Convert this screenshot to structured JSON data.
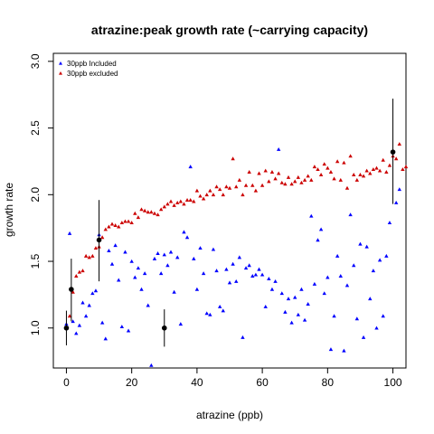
{
  "chart_data": {
    "type": "scatter",
    "title": "atrazine:peak growth rate (~carrying capacity)",
    "xlabel": "atrazine (ppb)",
    "ylabel": "growth rate",
    "xlim": [
      -4,
      104
    ],
    "ylim": [
      0.7,
      3.06
    ],
    "xticks": [
      0,
      20,
      40,
      60,
      80,
      100
    ],
    "yticks": [
      1.0,
      1.5,
      2.0,
      2.5,
      3.0
    ],
    "x_tick_labels": [
      "0",
      "20",
      "40",
      "60",
      "80",
      "100"
    ],
    "y_tick_labels": [
      "1.0",
      "1.5",
      "2.0",
      "2.5",
      "3.0"
    ],
    "grid": false,
    "legend_position": "top-left",
    "series": [
      {
        "name": "30ppb Included",
        "color": "#0000ff",
        "marker": "triangle",
        "points": [
          [
            0,
            1.03
          ],
          [
            1,
            1.71
          ],
          [
            2,
            1.05
          ],
          [
            3,
            0.96
          ],
          [
            4,
            1.02
          ],
          [
            5,
            1.19
          ],
          [
            6,
            1.09
          ],
          [
            7,
            1.17
          ],
          [
            8,
            1.26
          ],
          [
            9,
            1.28
          ],
          [
            10,
            1.7
          ],
          [
            11,
            1.04
          ],
          [
            12,
            0.92
          ],
          [
            13,
            1.58
          ],
          [
            14,
            1.48
          ],
          [
            15,
            1.62
          ],
          [
            16,
            1.36
          ],
          [
            17,
            1.01
          ],
          [
            18,
            1.57
          ],
          [
            19,
            0.98
          ],
          [
            20,
            1.5
          ],
          [
            21,
            1.38
          ],
          [
            22,
            1.45
          ],
          [
            23,
            1.29
          ],
          [
            24,
            1.41
          ],
          [
            25,
            1.17
          ],
          [
            26,
            0.72
          ],
          [
            27,
            1.52
          ],
          [
            28,
            1.56
          ],
          [
            29,
            1.41
          ],
          [
            30,
            1.55
          ],
          [
            31,
            1.47
          ],
          [
            32,
            1.57
          ],
          [
            33,
            1.27
          ],
          [
            34,
            1.53
          ],
          [
            35,
            1.03
          ],
          [
            36,
            1.72
          ],
          [
            37,
            1.68
          ],
          [
            38,
            2.21
          ],
          [
            39,
            1.52
          ],
          [
            40,
            1.29
          ],
          [
            41,
            1.6
          ],
          [
            42,
            1.41
          ],
          [
            43,
            1.11
          ],
          [
            44,
            1.1
          ],
          [
            45,
            1.59
          ],
          [
            46,
            1.43
          ],
          [
            47,
            1.16
          ],
          [
            48,
            1.13
          ],
          [
            49,
            1.44
          ],
          [
            50,
            1.34
          ],
          [
            51,
            1.48
          ],
          [
            52,
            1.35
          ],
          [
            53,
            1.53
          ],
          [
            54,
            0.93
          ],
          [
            55,
            1.45
          ],
          [
            56,
            1.47
          ],
          [
            57,
            1.39
          ],
          [
            58,
            1.4
          ],
          [
            59,
            1.44
          ],
          [
            60,
            1.4
          ],
          [
            61,
            1.16
          ],
          [
            62,
            1.37
          ],
          [
            63,
            1.29
          ],
          [
            64,
            1.35
          ],
          [
            65,
            2.34
          ],
          [
            66,
            1.26
          ],
          [
            67,
            1.12
          ],
          [
            68,
            1.22
          ],
          [
            69,
            1.04
          ],
          [
            70,
            1.23
          ],
          [
            71,
            1.1
          ],
          [
            72,
            1.29
          ],
          [
            73,
            1.06
          ],
          [
            74,
            1.18
          ],
          [
            75,
            1.84
          ],
          [
            76,
            1.33
          ],
          [
            77,
            1.66
          ],
          [
            78,
            1.74
          ],
          [
            79,
            1.26
          ],
          [
            80,
            1.38
          ],
          [
            81,
            0.84
          ],
          [
            82,
            1.09
          ],
          [
            83,
            1.54
          ],
          [
            84,
            1.39
          ],
          [
            85,
            0.83
          ],
          [
            86,
            1.32
          ],
          [
            87,
            1.85
          ],
          [
            88,
            1.47
          ],
          [
            89,
            1.07
          ],
          [
            90,
            1.63
          ],
          [
            91,
            0.93
          ],
          [
            92,
            1.61
          ],
          [
            93,
            1.22
          ],
          [
            94,
            1.43
          ],
          [
            95,
            1.0
          ],
          [
            96,
            1.51
          ],
          [
            97,
            1.09
          ],
          [
            98,
            1.54
          ],
          [
            99,
            1.79
          ],
          [
            100,
            2.32
          ],
          [
            101,
            1.94
          ],
          [
            102,
            2.04
          ]
        ]
      },
      {
        "name": "30ppb excluded",
        "color": "#cc0000",
        "marker": "triangle",
        "points": [
          [
            0,
            1.0
          ],
          [
            1,
            1.09
          ],
          [
            2,
            1.27
          ],
          [
            3,
            1.39
          ],
          [
            4,
            1.42
          ],
          [
            5,
            1.43
          ],
          [
            6,
            1.54
          ],
          [
            7,
            1.53
          ],
          [
            8,
            1.54
          ],
          [
            9,
            1.6
          ],
          [
            10,
            1.61
          ],
          [
            11,
            1.68
          ],
          [
            12,
            1.74
          ],
          [
            13,
            1.76
          ],
          [
            14,
            1.78
          ],
          [
            15,
            1.77
          ],
          [
            16,
            1.76
          ],
          [
            17,
            1.79
          ],
          [
            18,
            1.8
          ],
          [
            19,
            1.8
          ],
          [
            20,
            1.79
          ],
          [
            21,
            1.86
          ],
          [
            22,
            1.83
          ],
          [
            23,
            1.89
          ],
          [
            24,
            1.88
          ],
          [
            25,
            1.87
          ],
          [
            26,
            1.87
          ],
          [
            27,
            1.86
          ],
          [
            28,
            1.85
          ],
          [
            29,
            1.89
          ],
          [
            30,
            1.91
          ],
          [
            31,
            1.93
          ],
          [
            32,
            1.95
          ],
          [
            33,
            1.92
          ],
          [
            34,
            1.94
          ],
          [
            35,
            1.95
          ],
          [
            36,
            1.93
          ],
          [
            37,
            1.96
          ],
          [
            38,
            1.96
          ],
          [
            39,
            1.95
          ],
          [
            40,
            2.03
          ],
          [
            41,
            1.99
          ],
          [
            42,
            1.97
          ],
          [
            43,
            2.0
          ],
          [
            44,
            2.03
          ],
          [
            45,
            2.0
          ],
          [
            46,
            2.06
          ],
          [
            47,
            2.04
          ],
          [
            48,
            2.0
          ],
          [
            49,
            2.06
          ],
          [
            50,
            2.05
          ],
          [
            51,
            2.27
          ],
          [
            52,
            2.06
          ],
          [
            53,
            2.11
          ],
          [
            54,
            2.0
          ],
          [
            55,
            2.07
          ],
          [
            56,
            2.17
          ],
          [
            57,
            2.07
          ],
          [
            58,
            2.03
          ],
          [
            59,
            2.16
          ],
          [
            60,
            2.07
          ],
          [
            61,
            2.18
          ],
          [
            62,
            2.1
          ],
          [
            63,
            2.17
          ],
          [
            64,
            2.12
          ],
          [
            65,
            2.16
          ],
          [
            66,
            2.09
          ],
          [
            67,
            2.08
          ],
          [
            68,
            2.13
          ],
          [
            69,
            2.08
          ],
          [
            70,
            2.1
          ],
          [
            71,
            2.13
          ],
          [
            72,
            2.09
          ],
          [
            73,
            2.11
          ],
          [
            74,
            2.14
          ],
          [
            75,
            2.11
          ],
          [
            76,
            2.21
          ],
          [
            77,
            2.19
          ],
          [
            78,
            2.15
          ],
          [
            79,
            2.23
          ],
          [
            80,
            2.2
          ],
          [
            81,
            2.17
          ],
          [
            82,
            2.12
          ],
          [
            83,
            2.25
          ],
          [
            84,
            2.11
          ],
          [
            85,
            2.24
          ],
          [
            86,
            2.05
          ],
          [
            87,
            2.29
          ],
          [
            88,
            2.15
          ],
          [
            89,
            2.11
          ],
          [
            90,
            2.15
          ],
          [
            91,
            2.14
          ],
          [
            92,
            2.18
          ],
          [
            93,
            2.16
          ],
          [
            94,
            2.19
          ],
          [
            95,
            2.2
          ],
          [
            96,
            2.18
          ],
          [
            97,
            2.26
          ],
          [
            98,
            2.17
          ],
          [
            99,
            2.22
          ],
          [
            100,
            2.29
          ],
          [
            101,
            2.27
          ],
          [
            102,
            2.38
          ],
          [
            103,
            2.19
          ],
          [
            104,
            2.21
          ]
        ]
      },
      {
        "name": "",
        "color": "#000000",
        "marker": "circle",
        "error_bars": true,
        "points": [
          {
            "x": 0,
            "y": 1.0,
            "ylow": 0.87,
            "yhigh": 1.13
          },
          {
            "x": 1.5,
            "y": 1.29,
            "ylow": 1.05,
            "yhigh": 1.52
          },
          {
            "x": 10,
            "y": 1.66,
            "ylow": 1.35,
            "yhigh": 1.96
          },
          {
            "x": 30,
            "y": 1.0,
            "ylow": 0.86,
            "yhigh": 1.14
          },
          {
            "x": 100,
            "y": 2.32,
            "ylow": 1.93,
            "yhigh": 2.72
          }
        ]
      }
    ]
  }
}
